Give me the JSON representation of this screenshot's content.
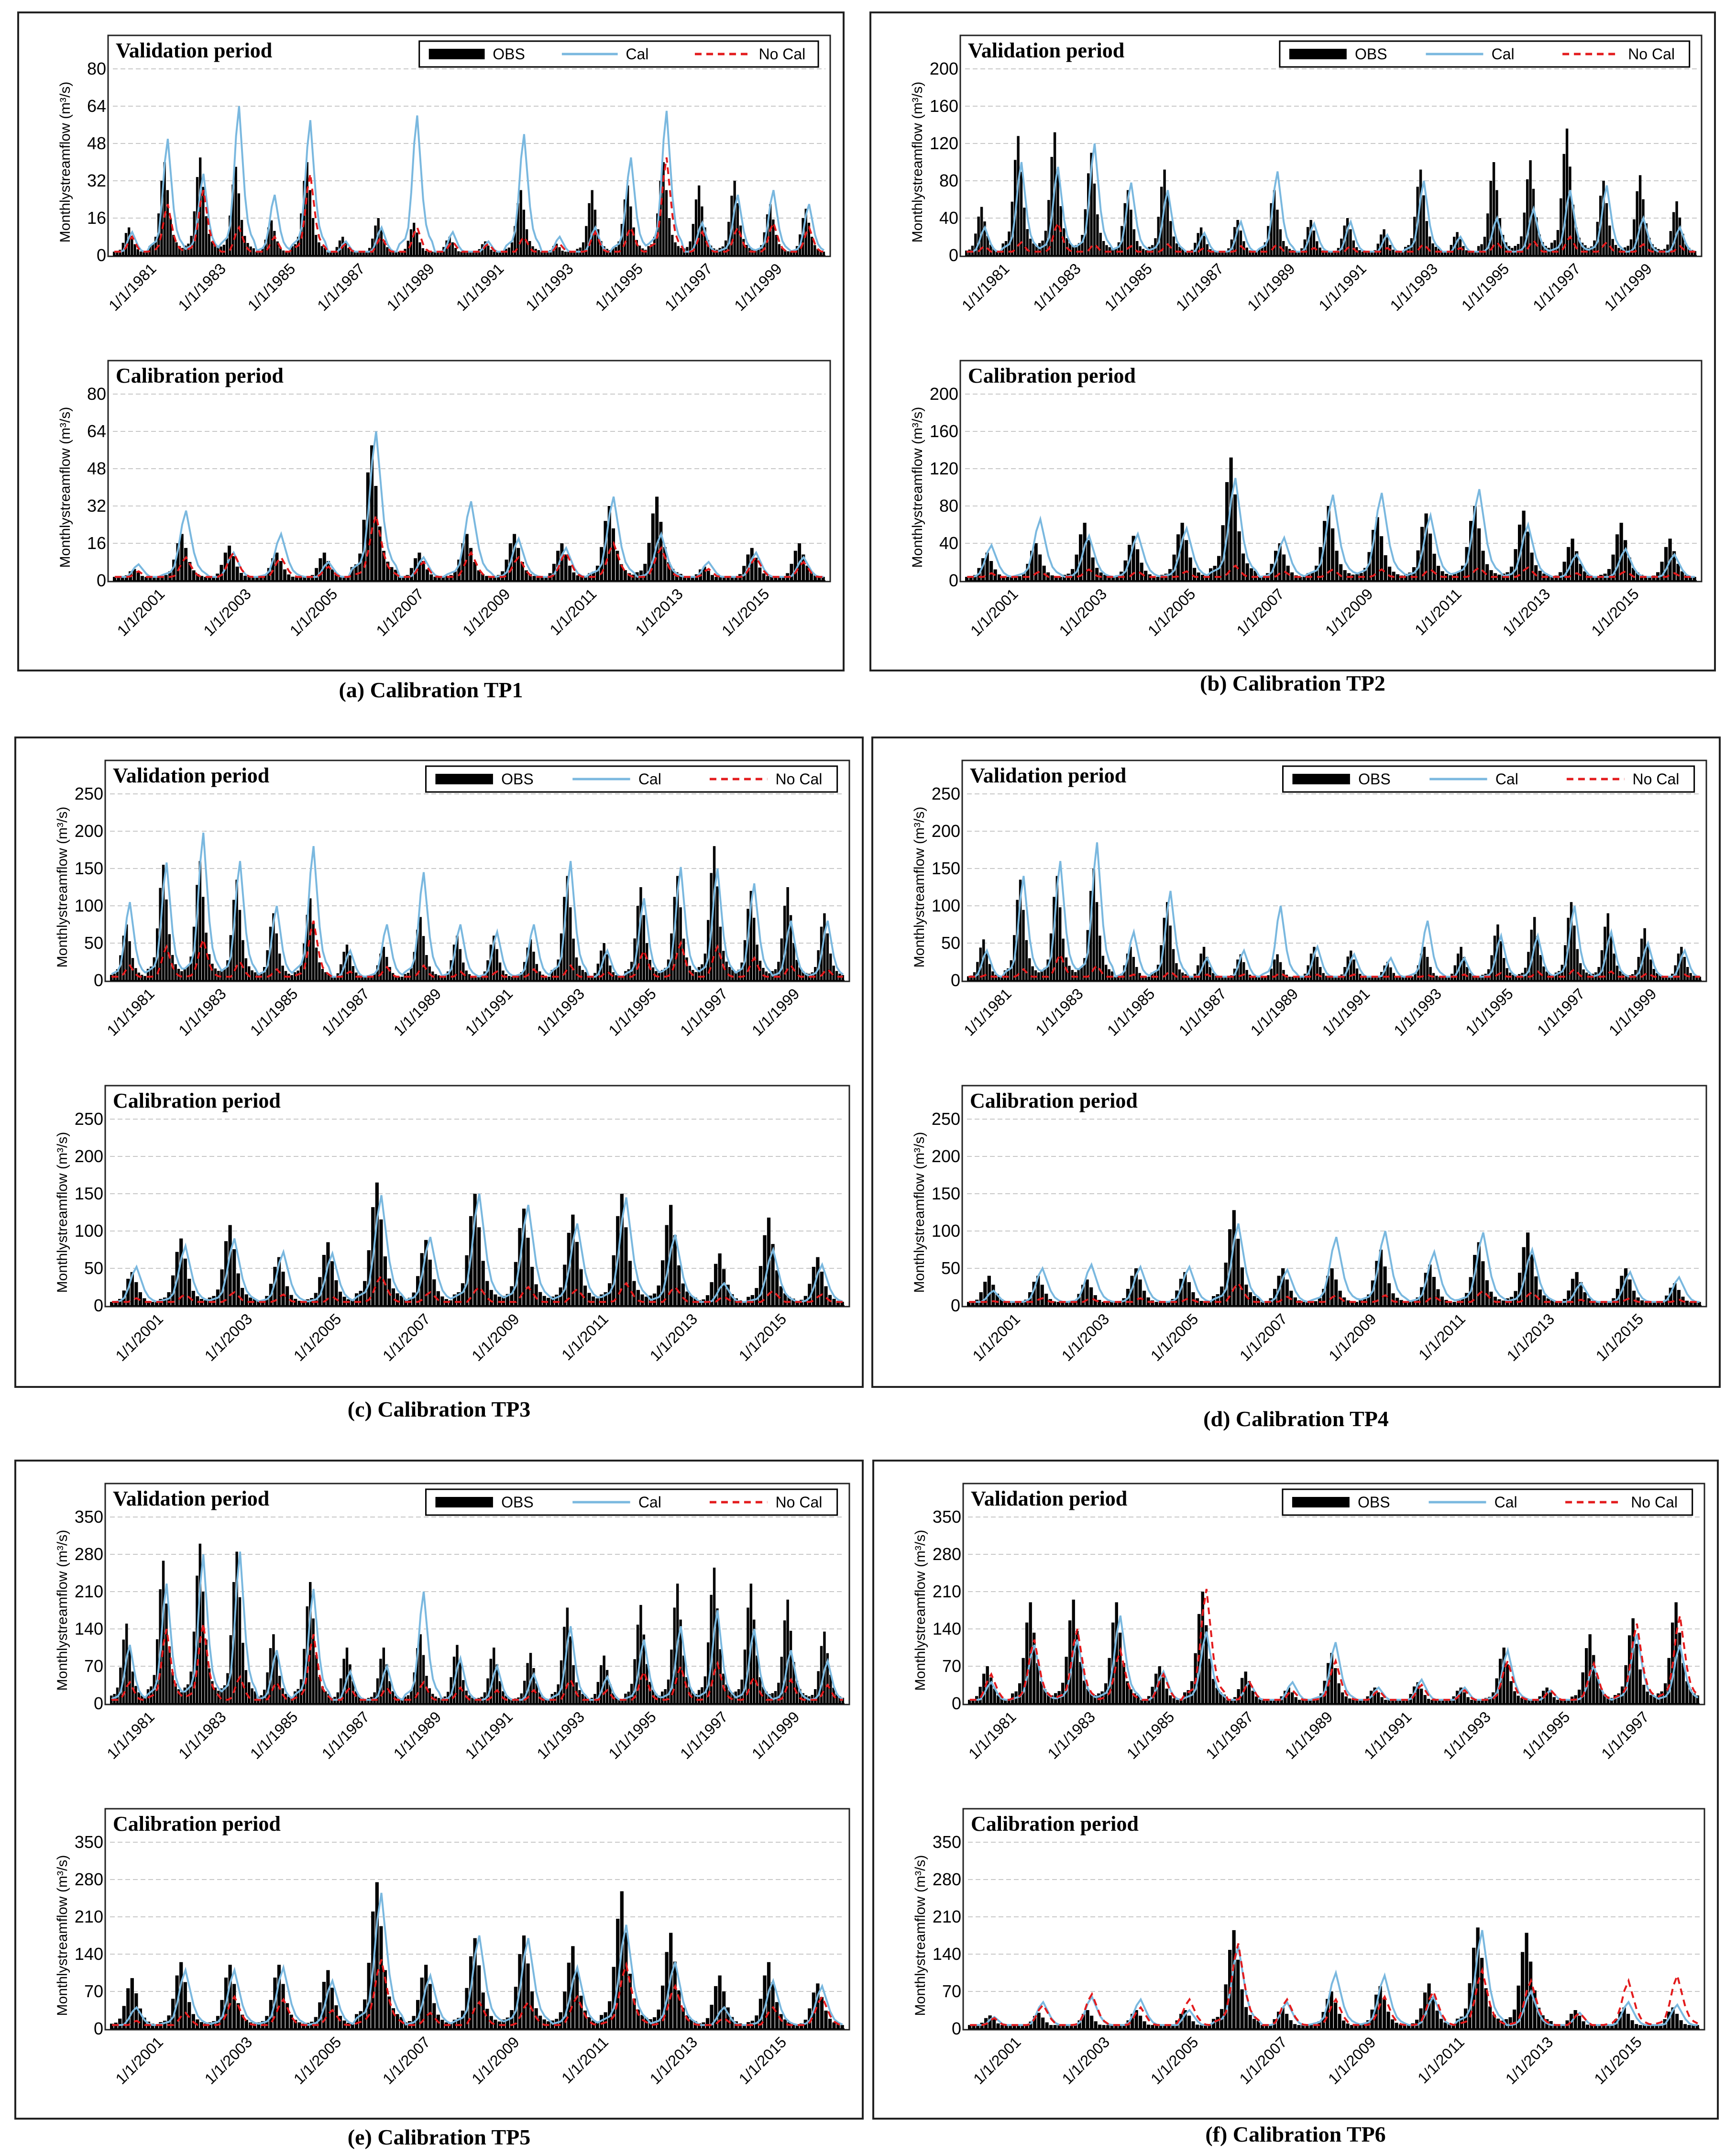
{
  "figure": {
    "series_names": {
      "obs": "OBS",
      "cal": "Cal",
      "nocal": "No Cal"
    },
    "colors": {
      "obs": "#000000",
      "cal": "#7ab8df",
      "nocal": "#e31a1c",
      "grid": "#c8c8c8",
      "frame": "#222222"
    },
    "ylabel": "Monthlystreamflow (m³/s)",
    "validation_title": "Validation period",
    "calibration_title": "Calibration period"
  },
  "chart_data": [
    {
      "type": "line",
      "id": "a",
      "caption": "(a) Calibration TP1",
      "validation": {
        "title": "Validation period",
        "xlabels": [
          "1/1/1981",
          "1/1/1983",
          "1/1/1985",
          "1/1/1987",
          "1/1/1989",
          "1/1/1991",
          "1/1/1993",
          "1/1/1995",
          "1/1/1997",
          "1/1/1999"
        ],
        "ylim": [
          0,
          80
        ],
        "yticks": [
          0,
          16,
          32,
          48,
          64,
          80
        ],
        "obs_peaks": [
          12,
          40,
          42,
          38,
          15,
          40,
          8,
          16,
          14,
          8,
          6,
          28,
          5,
          28,
          30,
          40,
          30,
          32,
          22,
          20
        ],
        "cal_peaks": [
          10,
          50,
          35,
          64,
          26,
          58,
          6,
          12,
          60,
          10,
          6,
          52,
          8,
          12,
          42,
          62,
          14,
          26,
          28,
          22
        ],
        "nocal_peaks": [
          8,
          22,
          28,
          12,
          8,
          35,
          5,
          8,
          12,
          6,
          5,
          8,
          5,
          10,
          12,
          42,
          10,
          12,
          14,
          12
        ],
        "legend": true
      },
      "calibration": {
        "title": "Calibration period",
        "xlabels": [
          "1/1/2001",
          "1/1/2003",
          "1/1/2005",
          "1/1/2007",
          "1/1/2009",
          "1/1/2011",
          "1/1/2013",
          "1/1/2015"
        ],
        "ylim": [
          0,
          80
        ],
        "yticks": [
          0,
          16,
          32,
          48,
          64,
          80
        ],
        "obs_peaks": [
          5,
          20,
          15,
          12,
          12,
          58,
          12,
          20,
          20,
          16,
          32,
          36,
          6,
          14,
          16
        ],
        "cal_peaks": [
          7,
          30,
          12,
          20,
          8,
          64,
          10,
          34,
          18,
          14,
          36,
          20,
          8,
          12,
          10
        ],
        "nocal_peaks": [
          4,
          10,
          12,
          10,
          6,
          28,
          8,
          12,
          10,
          12,
          16,
          14,
          5,
          10,
          8
        ],
        "legend": false
      }
    },
    {
      "type": "line",
      "id": "b",
      "caption": "(b) Calibration TP2",
      "validation": {
        "title": "Validation period",
        "xlabels": [
          "1/1/1981",
          "1/1/1983",
          "1/1/1985",
          "1/1/1987",
          "1/1/1989",
          "1/1/1991",
          "1/1/1993",
          "1/1/1995",
          "1/1/1997",
          "1/1/1999"
        ],
        "ylim": [
          0,
          200
        ],
        "yticks": [
          0,
          40,
          80,
          120,
          160,
          200
        ],
        "obs_peaks": [
          52,
          128,
          132,
          110,
          70,
          92,
          30,
          38,
          70,
          38,
          40,
          28,
          92,
          25,
          100,
          102,
          136,
          80,
          86,
          58
        ],
        "cal_peaks": [
          30,
          100,
          95,
          120,
          78,
          70,
          24,
          36,
          90,
          34,
          36,
          22,
          80,
          20,
          40,
          50,
          70,
          75,
          40,
          30
        ],
        "nocal_peaks": [
          10,
          14,
          35,
          12,
          10,
          12,
          8,
          10,
          12,
          8,
          10,
          8,
          12,
          8,
          14,
          16,
          20,
          14,
          12,
          10
        ],
        "legend": true
      },
      "calibration": {
        "title": "Calibration period",
        "xlabels": [
          "1/1/2001",
          "1/1/2003",
          "1/1/2005",
          "1/1/2007",
          "1/1/2009",
          "1/1/2011",
          "1/1/2013",
          "1/1/2015"
        ],
        "ylim": [
          0,
          200
        ],
        "yticks": [
          0,
          40,
          80,
          120,
          160,
          200
        ],
        "obs_peaks": [
          30,
          40,
          62,
          48,
          62,
          132,
          40,
          80,
          68,
          72,
          80,
          75,
          45,
          62,
          45
        ],
        "cal_peaks": [
          38,
          66,
          48,
          50,
          56,
          110,
          46,
          92,
          94,
          70,
          98,
          60,
          28,
          34,
          28
        ],
        "nocal_peaks": [
          8,
          10,
          12,
          10,
          10,
          16,
          10,
          12,
          12,
          12,
          14,
          14,
          8,
          10,
          8
        ],
        "legend": false
      }
    },
    {
      "type": "line",
      "id": "c",
      "caption": "(c) Calibration TP3",
      "validation": {
        "title": "Validation period",
        "xlabels": [
          "1/1/1981",
          "1/1/1983",
          "1/1/1985",
          "1/1/1987",
          "1/1/1989",
          "1/1/1991",
          "1/1/1993",
          "1/1/1995",
          "1/1/1997",
          "1/1/1999"
        ],
        "ylim": [
          0,
          250
        ],
        "yticks": [
          0,
          50,
          100,
          150,
          200,
          250
        ],
        "obs_peaks": [
          75,
          155,
          160,
          135,
          90,
          110,
          48,
          45,
          85,
          60,
          60,
          55,
          140,
          50,
          125,
          140,
          180,
          120,
          125,
          90
        ],
        "cal_peaks": [
          105,
          158,
          198,
          160,
          100,
          180,
          40,
          75,
          145,
          75,
          65,
          75,
          160,
          40,
          110,
          152,
          150,
          130,
          80,
          80
        ],
        "nocal_peaks": [
          20,
          45,
          55,
          25,
          15,
          80,
          12,
          18,
          20,
          12,
          12,
          15,
          20,
          12,
          40,
          50,
          45,
          30,
          20,
          15
        ],
        "legend": true
      },
      "calibration": {
        "title": "Calibration period",
        "xlabels": [
          "1/1/2001",
          "1/1/2003",
          "1/1/2005",
          "1/1/2007",
          "1/1/2009",
          "1/1/2011",
          "1/1/2013",
          "1/1/2015"
        ],
        "ylim": [
          0,
          250
        ],
        "yticks": [
          0,
          50,
          100,
          150,
          200,
          250
        ],
        "obs_peaks": [
          45,
          90,
          108,
          65,
          85,
          165,
          88,
          150,
          130,
          122,
          150,
          135,
          70,
          118,
          65
        ],
        "cal_peaks": [
          52,
          80,
          90,
          72,
          70,
          148,
          92,
          150,
          135,
          110,
          145,
          95,
          30,
          75,
          55
        ],
        "nocal_peaks": [
          10,
          15,
          18,
          15,
          12,
          40,
          18,
          25,
          25,
          22,
          30,
          25,
          12,
          20,
          15
        ],
        "legend": false
      }
    },
    {
      "type": "line",
      "id": "d",
      "caption": "(d) Calibration TP4",
      "validation": {
        "title": "Validation period",
        "xlabels": [
          "1/1/1981",
          "1/1/1983",
          "1/1/1985",
          "1/1/1987",
          "1/1/1989",
          "1/1/1991",
          "1/1/1993",
          "1/1/1995",
          "1/1/1997",
          "1/1/1999"
        ],
        "ylim": [
          0,
          250
        ],
        "yticks": [
          0,
          50,
          100,
          150,
          200,
          250
        ],
        "obs_peaks": [
          55,
          135,
          140,
          150,
          45,
          105,
          45,
          35,
          35,
          45,
          40,
          25,
          45,
          45,
          75,
          85,
          105,
          90,
          70,
          45
        ],
        "cal_peaks": [
          40,
          140,
          160,
          185,
          65,
          120,
          30,
          40,
          100,
          45,
          35,
          30,
          80,
          30,
          60,
          60,
          100,
          65,
          50,
          40
        ],
        "nocal_peaks": [
          8,
          15,
          35,
          20,
          8,
          12,
          8,
          8,
          10,
          8,
          8,
          6,
          8,
          8,
          10,
          12,
          15,
          12,
          10,
          8
        ],
        "legend": true
      },
      "calibration": {
        "title": "Calibration period",
        "xlabels": [
          "1/1/2001",
          "1/1/2003",
          "1/1/2005",
          "1/1/2007",
          "1/1/2009",
          "1/1/2011",
          "1/1/2013",
          "1/1/2015"
        ],
        "ylim": [
          0,
          250
        ],
        "yticks": [
          0,
          50,
          100,
          150,
          200,
          250
        ],
        "obs_peaks": [
          40,
          40,
          35,
          50,
          45,
          128,
          50,
          50,
          75,
          55,
          85,
          98,
          45,
          50,
          30
        ],
        "cal_peaks": [
          20,
          50,
          55,
          52,
          52,
          110,
          48,
          92,
          100,
          72,
          98,
          75,
          30,
          45,
          38
        ],
        "nocal_peaks": [
          6,
          10,
          10,
          10,
          10,
          30,
          12,
          14,
          14,
          12,
          20,
          18,
          8,
          10,
          8
        ],
        "legend": false
      }
    },
    {
      "type": "line",
      "id": "e",
      "caption": "(e) Calibration TP5",
      "validation": {
        "title": "Validation period",
        "xlabels": [
          "1/1/1981",
          "1/1/1983",
          "1/1/1985",
          "1/1/1987",
          "1/1/1989",
          "1/1/1991",
          "1/1/1993",
          "1/1/1995",
          "1/1/1997",
          "1/1/1999"
        ],
        "ylim": [
          0,
          350
        ],
        "yticks": [
          0,
          70,
          140,
          210,
          280,
          350
        ],
        "obs_peaks": [
          150,
          268,
          300,
          285,
          130,
          228,
          105,
          105,
          130,
          110,
          105,
          95,
          180,
          90,
          185,
          225,
          255,
          225,
          195,
          135
        ],
        "cal_peaks": [
          110,
          225,
          280,
          285,
          100,
          215,
          60,
          70,
          210,
          85,
          70,
          55,
          145,
          50,
          120,
          145,
          175,
          140,
          100,
          80
        ],
        "nocal_peaks": [
          40,
          140,
          150,
          50,
          40,
          130,
          30,
          30,
          40,
          30,
          25,
          25,
          45,
          25,
          60,
          70,
          75,
          50,
          45,
          35
        ],
        "legend": true
      },
      "calibration": {
        "title": "Calibration period",
        "xlabels": [
          "1/1/2001",
          "1/1/2003",
          "1/1/2005",
          "1/1/2007",
          "1/1/2009",
          "1/1/2011",
          "1/1/2013",
          "1/1/2015"
        ],
        "ylim": [
          0,
          350
        ],
        "yticks": [
          0,
          70,
          140,
          210,
          280,
          350
        ],
        "obs_peaks": [
          95,
          125,
          120,
          120,
          110,
          275,
          120,
          170,
          175,
          155,
          258,
          180,
          100,
          125,
          85
        ],
        "cal_peaks": [
          40,
          110,
          110,
          115,
          90,
          255,
          100,
          175,
          170,
          115,
          195,
          125,
          40,
          90,
          80
        ],
        "nocal_peaks": [
          15,
          30,
          60,
          55,
          35,
          130,
          30,
          50,
          50,
          60,
          120,
          80,
          20,
          40,
          60
        ],
        "legend": false
      }
    },
    {
      "type": "line",
      "id": "f",
      "caption": "(f) Calibration TP6",
      "validation": {
        "title": "Validation period",
        "xlabels": [
          "1/1/1981",
          "1/1/1983",
          "1/1/1985",
          "1/1/1987",
          "1/1/1989",
          "1/1/1991",
          "1/1/1993",
          "1/1/1995",
          "1/1/1997"
        ],
        "ylim": [
          0,
          350
        ],
        "yticks": [
          0,
          70,
          140,
          210,
          280,
          350
        ],
        "obs_peaks": [
          70,
          190,
          195,
          190,
          70,
          210,
          60,
          30,
          95,
          30,
          40,
          30,
          105,
          30,
          130,
          160,
          190
        ],
        "cal_peaks": [
          40,
          110,
          120,
          165,
          60,
          135,
          40,
          40,
          115,
          30,
          45,
          30,
          100,
          25,
          70,
          130,
          110
        ],
        "nocal_peaks": [
          55,
          120,
          140,
          100,
          55,
          215,
          40,
          25,
          80,
          25,
          35,
          25,
          80,
          25,
          75,
          150,
          165
        ],
        "legend": true
      },
      "calibration": {
        "title": "Calibration period",
        "xlabels": [
          "1/1/2001",
          "1/1/2003",
          "1/1/2005",
          "1/1/2007",
          "1/1/2009",
          "1/1/2011",
          "1/1/2013",
          "1/1/2015"
        ],
        "ylim": [
          0,
          350
        ],
        "yticks": [
          0,
          70,
          140,
          210,
          280,
          350
        ],
        "obs_peaks": [
          25,
          30,
          35,
          35,
          35,
          185,
          40,
          70,
          80,
          85,
          190,
          180,
          35,
          40,
          40
        ],
        "cal_peaks": [
          22,
          50,
          60,
          55,
          35,
          155,
          50,
          105,
          100,
          60,
          185,
          70,
          30,
          50,
          45
        ],
        "nocal_peaks": [
          20,
          45,
          65,
          40,
          55,
          160,
          55,
          55,
          60,
          70,
          110,
          90,
          30,
          90,
          100
        ],
        "legend": false
      }
    }
  ]
}
